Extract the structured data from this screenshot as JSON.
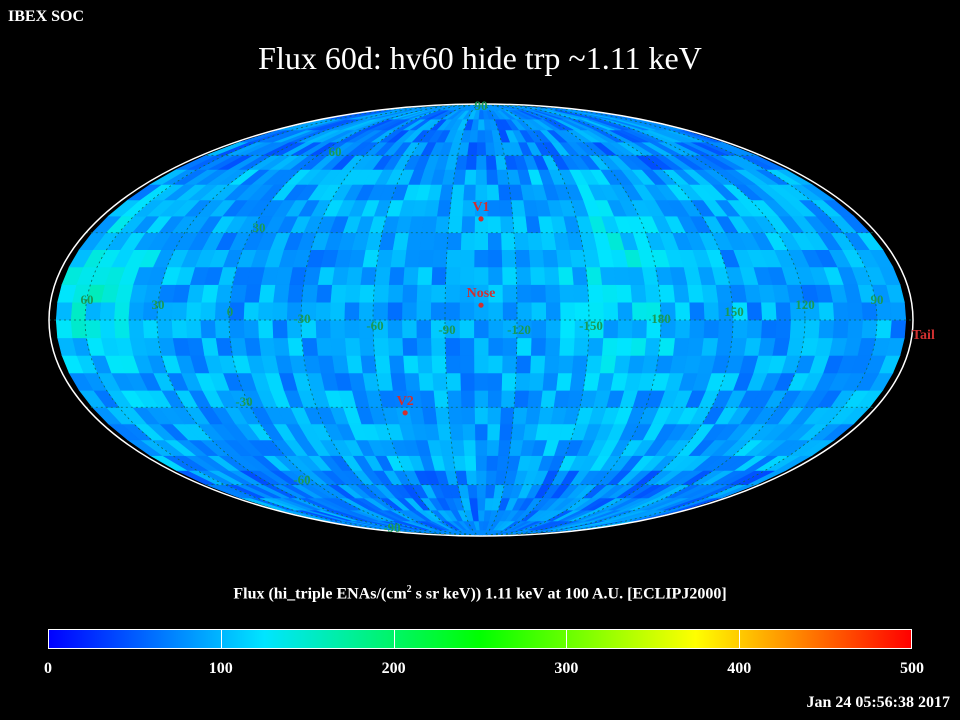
{
  "corner_label": "IBEX SOC",
  "title": "Flux   60d: hv60 hide trp ~1.11 keV",
  "caption_parts": [
    "Flux (hi_triple ENAs/(cm",
    "2",
    " s sr keV))  1.11 keV at 100 A.U. [ECLIPJ2000]"
  ],
  "timestamp": "Jan 24 05:56:38 2017",
  "chart_data": {
    "type": "heatmap",
    "projection": "Mollweide",
    "quantity": "Flux (hi_triple ENAs/(cm2 s sr keV))",
    "energy": "1.11 keV",
    "distance": "100 A.U.",
    "frame": "ECLIPJ2000",
    "colorbar": {
      "range": [
        0,
        500
      ],
      "ticks": [
        "0",
        "100",
        "200",
        "300",
        "400",
        "500"
      ]
    },
    "longitude_labels": [
      "60",
      "30",
      "0",
      "-30",
      "-60",
      "-90",
      "-120",
      "-150",
      "180",
      "150",
      "120",
      "90"
    ],
    "latitude_labels": [
      "90",
      "60",
      "30",
      "-30",
      "-60",
      "-90"
    ],
    "markers": [
      {
        "label": "V1",
        "lon": -105,
        "lat": 35,
        "color": "#d03030"
      },
      {
        "label": "Nose",
        "lon": -105,
        "lat": 5,
        "color": "#d03030"
      },
      {
        "label": "Tail",
        "lon": 75,
        "lat": -5,
        "color": "#d03030"
      },
      {
        "label": "V2",
        "lon": -70,
        "lat": -32,
        "color": "#d03030"
      }
    ],
    "typical_flux": 90,
    "max_flux": 230
  },
  "colors": {
    "label": "#1a9a55",
    "grid": "#0a6a5a",
    "marker": "#d03030",
    "colormap": [
      "#0000ff",
      "#00e5ff",
      "#00ff00",
      "#ffff00",
      "#ff0000"
    ]
  }
}
